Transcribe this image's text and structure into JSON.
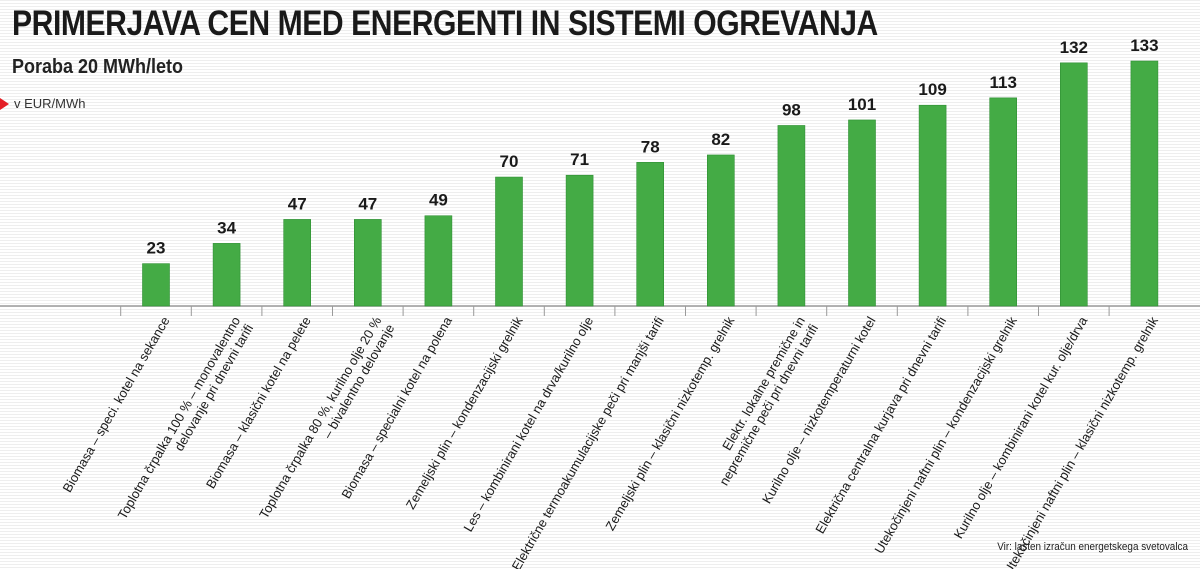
{
  "header": {
    "title": "PRIMERJAVA CEN MED ENERGENTI IN SISTEMI OGREVANJA",
    "subtitle": "Poraba 20 MWh/leto",
    "unit": "v EUR/MWh"
  },
  "footer": {
    "source": "Vir: lasten izračun energetskega svetovalca"
  },
  "colors": {
    "bar": "#44ab45",
    "bar_edge": "#2f8f34",
    "accent": "#e41f26"
  },
  "chart_data": {
    "type": "bar",
    "title": "PRIMERJAVA CEN MED ENERGENTI IN SISTEMI OGREVANJA",
    "subtitle": "Poraba 20 MWh/leto",
    "ylabel": "v EUR/MWh",
    "xlabel": "",
    "grid": false,
    "legend": "none",
    "ylim": [
      0,
      133
    ],
    "categories": [
      [
        "Biomasa – speci. kotel na sekance"
      ],
      [
        "Toplotna črpalka 100 % – monovalentno",
        "delovanje pri dnevni tarifi"
      ],
      [
        "Biomasa – klasični kotel na pelete"
      ],
      [
        "Toplotna črpalka 80 %, kurilno olje 20 %",
        "– bivalentno delovanje"
      ],
      [
        "Biomasa – specialni kotel na polena"
      ],
      [
        "Zemeljski plin – kondenzacijski grelnik"
      ],
      [
        "Les – kombinirani kotel na drva/kurilno olje"
      ],
      [
        "Električne termoakumulacijske peči pri manjši tarifi"
      ],
      [
        "Zemeljski plin – klasični nizkotemp. grelnik"
      ],
      [
        "Elektr. lokalne premične in",
        "nepremične peči pri dnevni tarifi"
      ],
      [
        "Kurilno olje – nizkotemperaturni kotel"
      ],
      [
        "Električna centralna kurjava pri dnevni tarifi"
      ],
      [
        "Utekočinjeni naftni plin – kondenzacijski grelnik"
      ],
      [
        "Kurilno olje – kombinirani kotel kur. olje/drva"
      ],
      [
        "Utekočinjeni naftni plin – klasični nizkotemp. grelnik"
      ]
    ],
    "values": [
      23,
      34,
      47,
      47,
      49,
      70,
      71,
      78,
      82,
      98,
      101,
      109,
      113,
      132,
      133
    ]
  }
}
